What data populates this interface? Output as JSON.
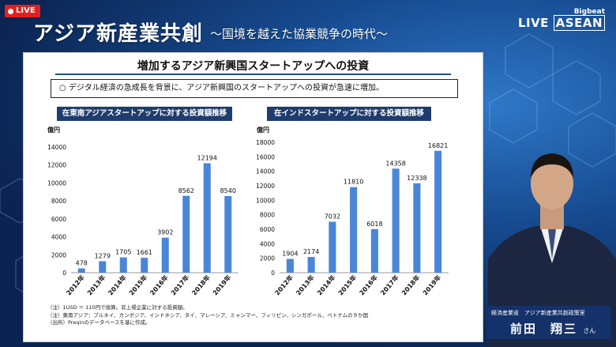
{
  "live_badge": "LIVE",
  "header": {
    "title": "アジア新産業共創",
    "subtitle": "～国境を越えた協業競争の時代～",
    "brand_top": "Bigbeat",
    "brand_live": "LIVE",
    "brand_asean": "ASEAN"
  },
  "slide": {
    "title": "増加するアジア新興国スタートアップへの投資",
    "lead": "○ デジタル経済の急成長を背景に、アジア新興国のスタートアップへの投資が急速に増加。",
    "notes": [
      "（注）1USD ＝ 110円で換算。非上場企業に対する投資額。",
      "（注）東南アジア：ブルネイ、カンボジア、インドネシア、タイ、マレーシア、ミャンマー、フィリピン、シンガポール、ベトナムの９か国",
      "（出所）Preqinのデータベースを基に作成。"
    ]
  },
  "chart_data": [
    {
      "type": "bar",
      "title": "在東南アジアスタートアップに対する投資額推移",
      "ylabel": "億円",
      "categories": [
        "2012年",
        "2013年",
        "2014年",
        "2015年",
        "2016年",
        "2017年",
        "2018年",
        "2019年"
      ],
      "values": [
        478,
        1279,
        1705,
        1661,
        3902,
        8562,
        12194,
        8540
      ],
      "ylim": [
        0,
        14000
      ],
      "yticks": [
        0,
        2000,
        4000,
        6000,
        8000,
        10000,
        12000,
        14000
      ],
      "color": "#4a86d8"
    },
    {
      "type": "bar",
      "title": "在インドスタートアップに対する投資額推移",
      "ylabel": "億円",
      "categories": [
        "2012年",
        "2013年",
        "2014年",
        "2015年",
        "2016年",
        "2017年",
        "2018年",
        "2019年"
      ],
      "values": [
        1904,
        2174,
        7032,
        11810,
        6018,
        14358,
        12338,
        16821
      ],
      "ylim": [
        0,
        18000
      ],
      "yticks": [
        0,
        2000,
        4000,
        6000,
        8000,
        10000,
        12000,
        14000,
        16000,
        18000
      ],
      "color": "#4a86d8"
    }
  ],
  "presenter": {
    "org": "経済産業省　アジア新産業共創政策室",
    "name": "前田　翔三",
    "honorific": "さん"
  }
}
